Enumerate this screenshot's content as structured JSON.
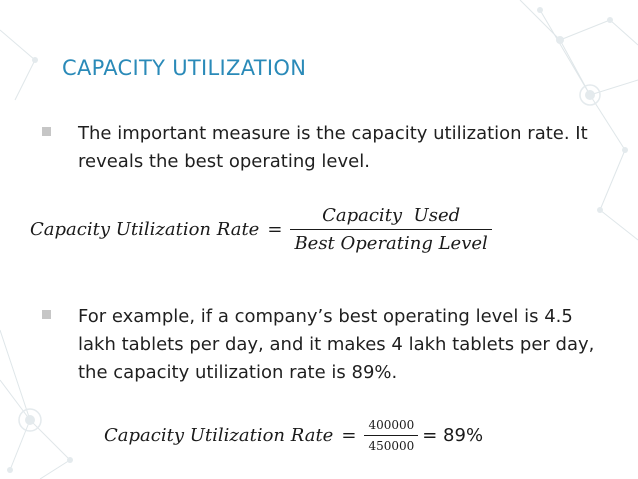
{
  "slide": {
    "title": "CAPACITY UTILIZATION",
    "bullet1": "The important measure is the capacity utilization rate. It reveals the best operating level.",
    "formula1": {
      "lhs": "Capacity Utilization Rate",
      "equals": "=",
      "numerator": "Capacity  Used",
      "denominator": "Best Operating Level"
    },
    "bullet2": "For example, if a company’s best operating level is 4.5 lakh tablets per day, and it makes 4 lakh tablets per day, the capacity utilization rate is 89%.",
    "formula2": {
      "lhs": "Capacity Utilization Rate",
      "equals": "=",
      "numerator": "400000",
      "denominator": "450000",
      "result": "= 89%"
    },
    "accent_color": "#2a8ab8",
    "bullet_color": "#c6c6c6",
    "background_decoration": "network-nodes-graphic"
  }
}
